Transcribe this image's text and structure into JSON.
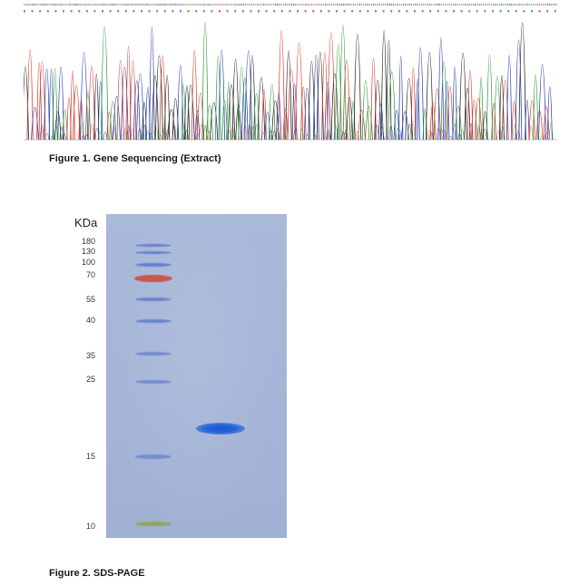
{
  "figure1": {
    "caption": "Figure 1. Gene Sequencing (Extract)",
    "peak_colors": {
      "A": "#2e9b3a",
      "C": "#2a3fb0",
      "G": "#222222",
      "T": "#d23a2e"
    }
  },
  "figure2": {
    "caption": "Figure 2. SDS-PAGE",
    "unit_label": "KDa",
    "marker_labels": [
      "180",
      "130",
      "100",
      "70",
      "55",
      "40",
      "35",
      "25",
      "15",
      "10"
    ],
    "marker_colors": {
      "standard": "#5a7fcf",
      "reference_70": "#c8503a",
      "reference_10": "#8fa64a"
    },
    "sample_band_color": "#1f5fd6"
  }
}
